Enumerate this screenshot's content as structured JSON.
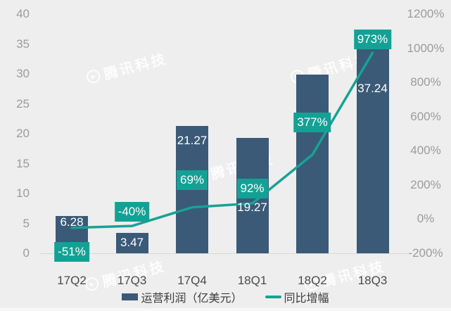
{
  "watermark": {
    "text": "腾讯科技"
  },
  "colors": {
    "background": "#eeeeee",
    "bar": "#3a5a78",
    "line": "#17a294",
    "growth_label_bg": "#14a195",
    "label_text": "#ffffff",
    "axis_text": "#9c9c9c",
    "x_axis_text": "#4a4a4a",
    "legend_text": "#3c3c3c",
    "baseline": "#d8d8d8"
  },
  "chart_data": {
    "type": "bar",
    "subtype": "bar+line combo",
    "categories": [
      "17Q2",
      "17Q3",
      "17Q4",
      "18Q1",
      "18Q2",
      "18Q3"
    ],
    "series": [
      {
        "name": "运营利润（亿美元）",
        "type": "bar",
        "axis": "left",
        "values": [
          6.28,
          3.47,
          21.27,
          19.27,
          29.9,
          37.24
        ],
        "data_labels": [
          "6.28",
          "3.47",
          "21.27",
          "19.27",
          "",
          "37.24"
        ]
      },
      {
        "name": "同比增幅",
        "type": "line",
        "axis": "right",
        "values": [
          -51,
          -40,
          69,
          92,
          377,
          973
        ],
        "data_labels": [
          "-51%",
          "-40%",
          "69%",
          "92%",
          "377%",
          "973%"
        ]
      }
    ],
    "left_axis": {
      "min": 0,
      "max": 40,
      "tick_labels": [
        "40",
        "35",
        "30",
        "25",
        "20",
        "15",
        "10",
        "5",
        "0"
      ]
    },
    "right_axis": {
      "min": -200,
      "max": 1200,
      "tick_labels": [
        "1200%",
        "1000%",
        "800%",
        "600%",
        "400%",
        "200%",
        "0%",
        "-200%"
      ]
    },
    "grid": false,
    "legend_position": "bottom",
    "legend": [
      "运营利润（亿美元）",
      "同比增幅"
    ]
  }
}
